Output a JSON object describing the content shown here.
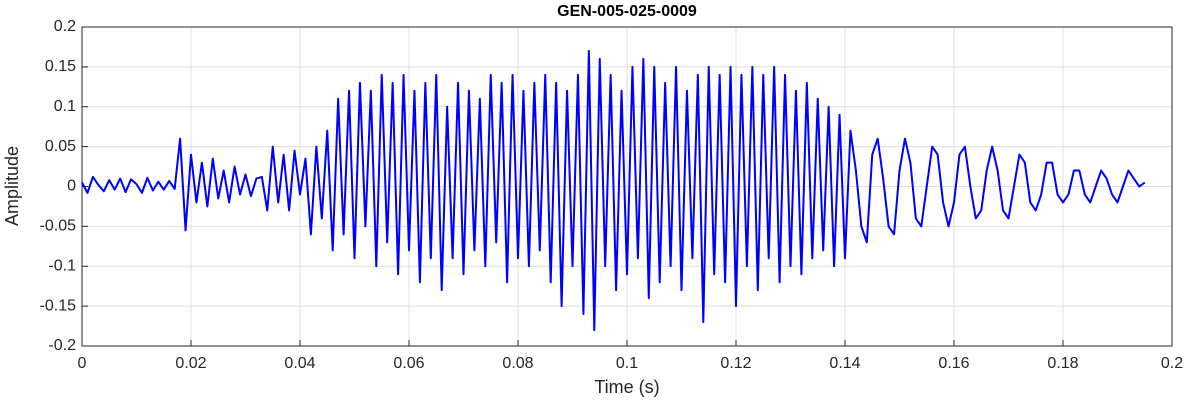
{
  "chart_data": {
    "type": "line",
    "title": "GEN-005-025-0009",
    "xlabel": "Time (s)",
    "ylabel": "Amplitude",
    "x": [
      0,
      0.001,
      0.002,
      0.003,
      0.004,
      0.005,
      0.006,
      0.007,
      0.008,
      0.009,
      0.01,
      0.011,
      0.012,
      0.013,
      0.014,
      0.015,
      0.016,
      0.017,
      0.018,
      0.019,
      0.02,
      0.021,
      0.022,
      0.023,
      0.024,
      0.025,
      0.026,
      0.027,
      0.028,
      0.029,
      0.03,
      0.031,
      0.032,
      0.033,
      0.034,
      0.035,
      0.036,
      0.037,
      0.038,
      0.039,
      0.04,
      0.041,
      0.042,
      0.043,
      0.044,
      0.045,
      0.046,
      0.047,
      0.048,
      0.049,
      0.05,
      0.051,
      0.052,
      0.053,
      0.054,
      0.055,
      0.056,
      0.057,
      0.058,
      0.059,
      0.06,
      0.061,
      0.062,
      0.063,
      0.064,
      0.065,
      0.066,
      0.067,
      0.068,
      0.069,
      0.07,
      0.071,
      0.072,
      0.073,
      0.074,
      0.075,
      0.076,
      0.077,
      0.078,
      0.079,
      0.08,
      0.081,
      0.082,
      0.083,
      0.084,
      0.085,
      0.086,
      0.087,
      0.088,
      0.089,
      0.09,
      0.091,
      0.092,
      0.093,
      0.094,
      0.095,
      0.096,
      0.097,
      0.098,
      0.099,
      0.1,
      0.101,
      0.102,
      0.103,
      0.104,
      0.105,
      0.106,
      0.107,
      0.108,
      0.109,
      0.11,
      0.111,
      0.112,
      0.113,
      0.114,
      0.115,
      0.116,
      0.117,
      0.118,
      0.119,
      0.12,
      0.121,
      0.122,
      0.123,
      0.124,
      0.125,
      0.126,
      0.127,
      0.128,
      0.129,
      0.13,
      0.131,
      0.132,
      0.133,
      0.134,
      0.135,
      0.136,
      0.137,
      0.138,
      0.139,
      0.14,
      0.141,
      0.142,
      0.143,
      0.144,
      0.145,
      0.146,
      0.147,
      0.148,
      0.149,
      0.15,
      0.151,
      0.152,
      0.153,
      0.154,
      0.155,
      0.156,
      0.157,
      0.158,
      0.159,
      0.16,
      0.161,
      0.162,
      0.163,
      0.164,
      0.165,
      0.166,
      0.167,
      0.168,
      0.169,
      0.17,
      0.171,
      0.172,
      0.173,
      0.174,
      0.175,
      0.176,
      0.177,
      0.178,
      0.179,
      0.18,
      0.181,
      0.182,
      0.183,
      0.184,
      0.185,
      0.186,
      0.187,
      0.188,
      0.189,
      0.19,
      0.191,
      0.192,
      0.193,
      0.194,
      0.195
    ],
    "series": [
      {
        "color": "#0000ff",
        "values": [
          0.005,
          -0.008,
          0.012,
          0.002,
          -0.006,
          0.008,
          -0.004,
          0.01,
          -0.007,
          0.009,
          0.003,
          -0.008,
          0.011,
          -0.005,
          0.006,
          -0.004,
          0.007,
          -0.003,
          0.06,
          -0.055,
          0.04,
          -0.02,
          0.03,
          -0.025,
          0.035,
          -0.015,
          0.02,
          -0.02,
          0.025,
          -0.01,
          0.015,
          -0.012,
          0.01,
          0.012,
          -0.03,
          0.05,
          -0.02,
          0.04,
          -0.03,
          0.045,
          -0.01,
          0.035,
          -0.06,
          0.05,
          -0.04,
          0.07,
          -0.08,
          0.11,
          -0.06,
          0.12,
          -0.09,
          0.13,
          -0.05,
          0.12,
          -0.1,
          0.14,
          -0.07,
          0.13,
          -0.11,
          0.14,
          -0.08,
          0.12,
          -0.12,
          0.13,
          -0.09,
          0.14,
          -0.13,
          0.1,
          -0.09,
          0.13,
          -0.11,
          0.12,
          -0.08,
          0.11,
          -0.1,
          0.14,
          -0.07,
          0.13,
          -0.12,
          0.14,
          -0.09,
          0.12,
          -0.1,
          0.13,
          -0.08,
          0.14,
          -0.12,
          0.13,
          -0.15,
          0.12,
          -0.1,
          0.14,
          -0.16,
          0.17,
          -0.18,
          0.16,
          -0.1,
          0.14,
          -0.13,
          0.12,
          -0.11,
          0.15,
          -0.09,
          0.16,
          -0.14,
          0.15,
          -0.12,
          0.13,
          -0.1,
          0.15,
          -0.13,
          0.12,
          -0.09,
          0.14,
          -0.17,
          0.15,
          -0.11,
          0.14,
          -0.12,
          0.15,
          -0.15,
          0.14,
          -0.1,
          0.15,
          -0.13,
          0.14,
          -0.09,
          0.15,
          -0.12,
          0.14,
          -0.1,
          0.12,
          -0.11,
          0.13,
          -0.09,
          0.11,
          -0.08,
          0.1,
          -0.1,
          0.09,
          -0.09,
          0.07,
          0.02,
          -0.05,
          -0.07,
          0.04,
          0.06,
          0.01,
          -0.05,
          -0.06,
          0.02,
          0.06,
          0.03,
          -0.04,
          -0.05,
          0,
          0.05,
          0.04,
          -0.02,
          -0.05,
          -0.02,
          0.04,
          0.05,
          0,
          -0.04,
          -0.03,
          0.02,
          0.05,
          0.02,
          -0.03,
          -0.04,
          0,
          0.04,
          0.03,
          -0.02,
          -0.03,
          -0.01,
          0.03,
          0.03,
          -0.01,
          -0.02,
          -0.01,
          0.02,
          0.02,
          -0.01,
          -0.02,
          0,
          0.02,
          0.01,
          -0.01,
          -0.02,
          0,
          0.02,
          0.01,
          0,
          0.005
        ]
      }
    ],
    "xlim": [
      0,
      0.2
    ],
    "xticks": [
      0,
      0.02,
      0.04,
      0.06,
      0.08,
      0.1,
      0.12,
      0.14,
      0.16,
      0.18,
      0.2
    ],
    "ylim": [
      -0.2,
      0.2
    ],
    "yticks": [
      -0.2,
      -0.15,
      -0.1,
      -0.05,
      0,
      0.05,
      0.1,
      0.15,
      0.2
    ],
    "grid": true
  }
}
